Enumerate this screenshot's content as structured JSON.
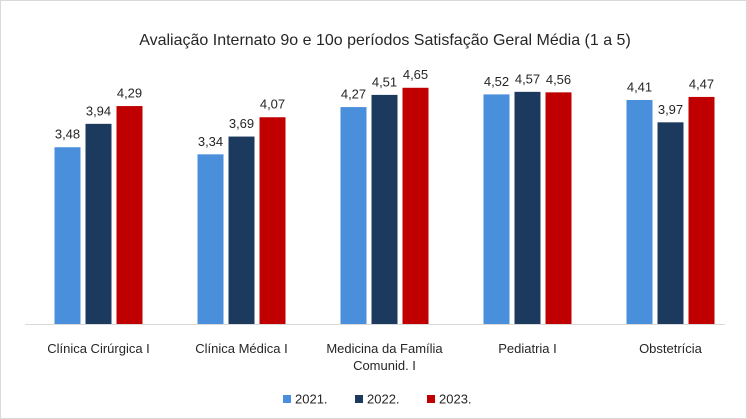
{
  "chart_data": {
    "type": "bar",
    "title": "Avaliação Internato 9o e 10o períodos Satisfação Geral Média (1 a 5)",
    "categories": [
      "Clínica Cirúrgica I",
      "Clínica Médica I",
      "Medicina da Família Comunid. I",
      "Pediatria I",
      "Obstetrícia"
    ],
    "series": [
      {
        "name": "2021.",
        "color": "#4a8fdc",
        "values": [
          3.48,
          3.34,
          4.27,
          4.52,
          4.41
        ],
        "value_labels": [
          "3,48",
          "3,34",
          "4,27",
          "4,52",
          "4,41"
        ]
      },
      {
        "name": "2022.",
        "color": "#1b3a5e",
        "values": [
          3.94,
          3.69,
          4.51,
          4.57,
          3.97
        ],
        "value_labels": [
          "3,94",
          "3,69",
          "4,51",
          "4,57",
          "3,97"
        ]
      },
      {
        "name": "2023.",
        "color": "#c00000",
        "values": [
          4.29,
          4.07,
          4.65,
          4.56,
          4.47
        ],
        "value_labels": [
          "4,29",
          "4,07",
          "4,65",
          "4,56",
          "4,47"
        ]
      }
    ],
    "ylim": [
      0,
      5
    ],
    "legend": "bottom"
  }
}
